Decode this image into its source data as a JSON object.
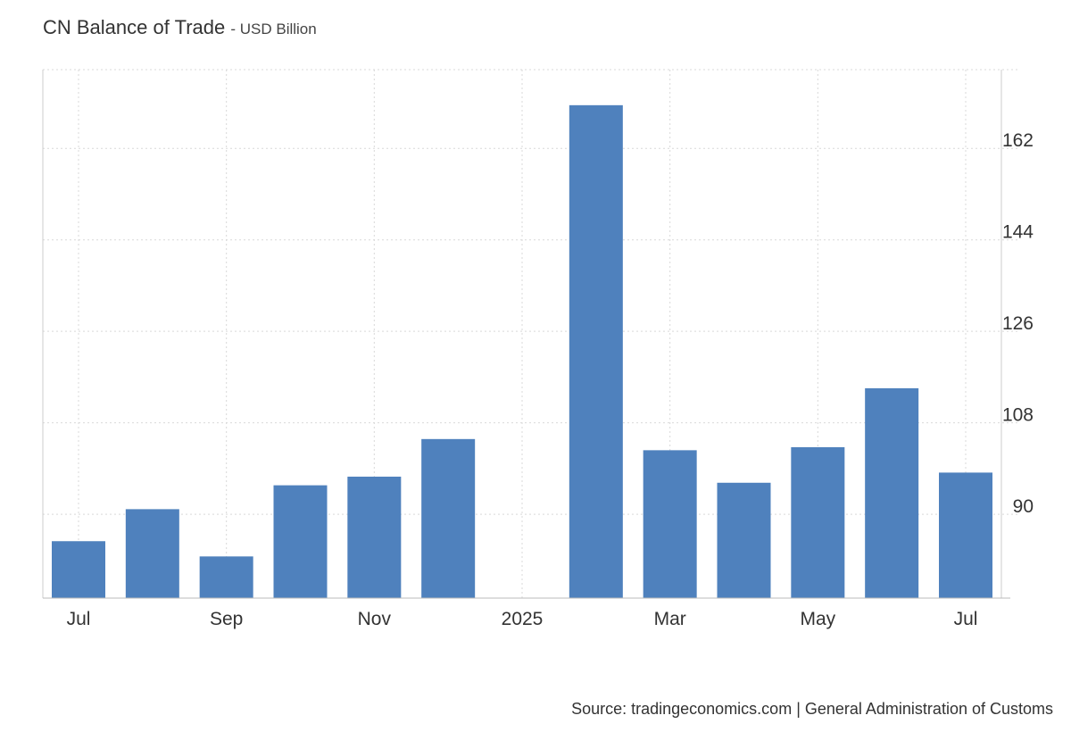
{
  "title": "CN Balance of Trade",
  "unit": "USD Billion",
  "source": "Source: tradingeconomics.com | General Administration of Customs",
  "chart_data": {
    "type": "bar",
    "categories": [
      "2024-07",
      "2024-08",
      "2024-09",
      "2024-10",
      "2024-11",
      "2024-12",
      "2025-01",
      "2025-02",
      "2025-03",
      "2025-04",
      "2025-05",
      "2025-06",
      "2025-07"
    ],
    "values": [
      84.7,
      91.0,
      81.7,
      95.7,
      97.4,
      104.8,
      null,
      170.5,
      102.6,
      96.2,
      103.2,
      114.8,
      98.2
    ],
    "x_tick_labels": [
      "Jul",
      "Sep",
      "Nov",
      "2025",
      "Mar",
      "May",
      "Jul"
    ],
    "x_tick_categories": [
      "2024-07",
      "2024-09",
      "2024-11",
      "2025-01",
      "2025-03",
      "2025-05",
      "2025-07"
    ],
    "y_ticks": [
      90,
      108,
      126,
      144,
      162
    ],
    "ylim": [
      73.5,
      177.5
    ],
    "y_axis_side": "right",
    "grid": true,
    "bar_color": "#4f81bd",
    "grid_color": "#d9d9d9"
  }
}
